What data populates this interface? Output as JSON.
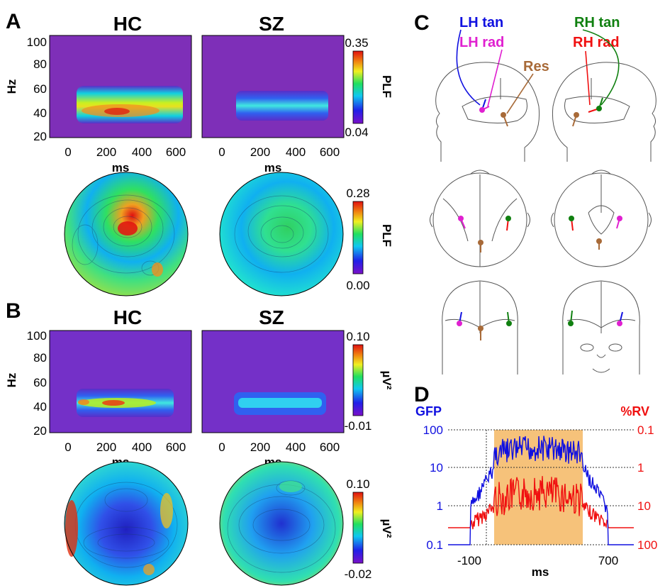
{
  "panels": {
    "A": {
      "letter": "A",
      "spectrograms": [
        {
          "title": "HC"
        },
        {
          "title": "SZ"
        }
      ],
      "y_label": "Hz",
      "x_label": "ms",
      "y_ticks": [
        "100",
        "80",
        "60",
        "40",
        "20"
      ],
      "x_ticks": [
        "0",
        "200",
        "400",
        "600"
      ],
      "colorbar": {
        "max": "0.35",
        "min": "0.04",
        "label": "PLF"
      },
      "topo_colorbar": {
        "max": "0.28",
        "min": "0.00",
        "label": "PLF"
      }
    },
    "B": {
      "letter": "B",
      "spectrograms": [
        {
          "title": "HC"
        },
        {
          "title": "SZ"
        }
      ],
      "y_label": "Hz",
      "x_label": "ms",
      "y_ticks": [
        "100",
        "80",
        "60",
        "40",
        "20"
      ],
      "x_ticks": [
        "0",
        "200",
        "400",
        "600"
      ],
      "colorbar": {
        "max": "0.10",
        "min": "-0.01",
        "label": "µV²"
      },
      "topo_colorbar": {
        "max": "0.10",
        "min": "-0.02",
        "label": "µV²"
      }
    },
    "C": {
      "letter": "C",
      "sources": {
        "lh_tan": {
          "label": "LH tan",
          "color": "#1010e0"
        },
        "lh_rad": {
          "label": "LH rad",
          "color": "#e020d0"
        },
        "rh_tan": {
          "label": "RH tan",
          "color": "#108010"
        },
        "rh_rad": {
          "label": "RH rad",
          "color": "#f01010"
        },
        "res": {
          "label": "Res",
          "color": "#a86a38"
        }
      }
    },
    "D": {
      "letter": "D",
      "left_axis_title": "GFP",
      "right_axis_title": "%RV",
      "left_ticks": [
        "100",
        "10",
        "1",
        "0.1"
      ],
      "right_ticks": [
        "0.1",
        "1",
        "10",
        "100"
      ],
      "x_ticks": [
        "-100",
        "700"
      ],
      "x_label": "ms",
      "left_color": "#1010e0",
      "right_color": "#f01010",
      "window_color": "#f6c27a"
    }
  }
}
